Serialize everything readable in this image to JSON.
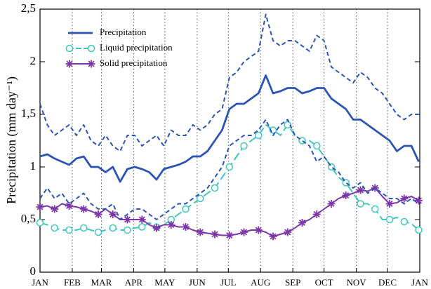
{
  "chart_data": {
    "type": "line",
    "ylabel": "Precipitation (mm day⁻¹)",
    "x": [
      0,
      7,
      14,
      21,
      28,
      35,
      42,
      49,
      56,
      63,
      70,
      77,
      84,
      91,
      98,
      105,
      112,
      119,
      126,
      133,
      140,
      147,
      154,
      161,
      168,
      175,
      182,
      189,
      196,
      203,
      210,
      217,
      224,
      231,
      238,
      245,
      252,
      259,
      266,
      273,
      280,
      287,
      294,
      301,
      308,
      315,
      322,
      329,
      336,
      343,
      350,
      357,
      364
    ],
    "xlim": [
      0,
      365
    ],
    "xticks": [
      {
        "value": 0,
        "label": "JAN"
      },
      {
        "value": 31,
        "label": "FEB"
      },
      {
        "value": 59,
        "label": "MAR"
      },
      {
        "value": 90,
        "label": "APR"
      },
      {
        "value": 120,
        "label": "MAY"
      },
      {
        "value": 151,
        "label": "JUN"
      },
      {
        "value": 181,
        "label": "JUL"
      },
      {
        "value": 212,
        "label": "AUG"
      },
      {
        "value": 243,
        "label": "SEP"
      },
      {
        "value": 273,
        "label": "OCT"
      },
      {
        "value": 304,
        "label": "NOV"
      },
      {
        "value": 334,
        "label": "DEC"
      },
      {
        "value": 365,
        "label": "JAN"
      }
    ],
    "ylim": [
      0,
      2.5
    ],
    "yticks": [
      0,
      {
        "value": 0.5,
        "label": "0,5"
      },
      1,
      {
        "value": 1.5,
        "label": "1,5"
      },
      2,
      {
        "value": 2.5,
        "label": "2,5"
      }
    ],
    "xgrid": true,
    "legend": "upper-left",
    "series": [
      {
        "name": "Precipitation",
        "color": "#2a55b5",
        "values": [
          1.1,
          1.12,
          1.08,
          1.05,
          1.02,
          1.08,
          1.1,
          1.0,
          1.0,
          0.95,
          1.0,
          0.86,
          0.98,
          1.0,
          0.98,
          0.95,
          0.88,
          0.98,
          1.0,
          1.02,
          1.05,
          1.1,
          1.1,
          1.15,
          1.25,
          1.35,
          1.55,
          1.6,
          1.6,
          1.65,
          1.7,
          1.87,
          1.7,
          1.72,
          1.75,
          1.75,
          1.7,
          1.72,
          1.75,
          1.75,
          1.65,
          1.6,
          1.55,
          1.45,
          1.45,
          1.4,
          1.35,
          1.3,
          1.25,
          1.15,
          1.2,
          1.2,
          1.05
        ]
      },
      {
        "name": "Liquid precipitation",
        "color": "#40c8c0",
        "marker": "circle",
        "dash": "long",
        "values": [
          0.47,
          0.45,
          0.42,
          0.4,
          0.4,
          0.4,
          0.42,
          0.4,
          0.38,
          0.4,
          0.42,
          0.4,
          0.4,
          0.42,
          0.43,
          0.47,
          0.43,
          0.45,
          0.5,
          0.55,
          0.6,
          0.65,
          0.7,
          0.75,
          0.8,
          0.9,
          1.0,
          1.1,
          1.2,
          1.25,
          1.3,
          1.4,
          1.35,
          1.3,
          1.4,
          1.3,
          1.25,
          1.25,
          1.2,
          1.1,
          1.0,
          0.9,
          0.85,
          0.75,
          0.65,
          0.65,
          0.6,
          0.5,
          0.5,
          0.52,
          0.48,
          0.46,
          0.4
        ]
      },
      {
        "name": "Solid precipitation",
        "color": "#7d35a8",
        "marker": "star",
        "values": [
          0.62,
          0.63,
          0.6,
          0.65,
          0.63,
          0.62,
          0.6,
          0.58,
          0.55,
          0.6,
          0.55,
          0.5,
          0.5,
          0.5,
          0.5,
          0.45,
          0.42,
          0.45,
          0.45,
          0.43,
          0.43,
          0.4,
          0.38,
          0.37,
          0.36,
          0.35,
          0.35,
          0.36,
          0.38,
          0.4,
          0.4,
          0.38,
          0.34,
          0.36,
          0.38,
          0.42,
          0.47,
          0.5,
          0.55,
          0.6,
          0.65,
          0.7,
          0.73,
          0.75,
          0.78,
          0.77,
          0.8,
          0.72,
          0.65,
          0.66,
          0.7,
          0.72,
          0.68
        ]
      },
      {
        "color": "#2a55b5",
        "dash": "short",
        "values": [
          1.6,
          1.4,
          1.3,
          1.35,
          1.4,
          1.3,
          1.4,
          1.25,
          1.2,
          1.3,
          1.2,
          1.15,
          1.3,
          1.3,
          1.2,
          1.25,
          1.3,
          1.2,
          1.35,
          1.3,
          1.3,
          1.4,
          1.35,
          1.4,
          1.5,
          1.55,
          1.85,
          1.9,
          2.0,
          2.05,
          2.1,
          2.45,
          2.2,
          2.15,
          2.2,
          2.2,
          2.15,
          2.1,
          2.25,
          2.2,
          1.95,
          1.9,
          1.85,
          1.8,
          1.9,
          1.85,
          1.75,
          1.7,
          1.6,
          1.5,
          1.45,
          1.5,
          1.5
        ]
      },
      {
        "color": "#2a55b5",
        "dash": "short",
        "values": [
          0.7,
          0.8,
          0.7,
          0.75,
          0.65,
          0.7,
          0.75,
          0.65,
          0.6,
          0.6,
          0.65,
          0.5,
          0.55,
          0.6,
          0.6,
          0.55,
          0.5,
          0.55,
          0.6,
          0.65,
          0.65,
          0.7,
          0.75,
          0.8,
          0.9,
          1.0,
          1.2,
          1.25,
          1.3,
          1.3,
          1.35,
          1.45,
          1.3,
          1.4,
          1.45,
          1.3,
          1.25,
          1.2,
          1.05,
          1.1,
          1.0,
          0.95,
          0.85,
          0.8,
          0.85,
          0.75,
          0.8,
          0.75,
          0.7,
          0.7,
          0.65,
          0.7,
          0.65
        ]
      }
    ]
  }
}
